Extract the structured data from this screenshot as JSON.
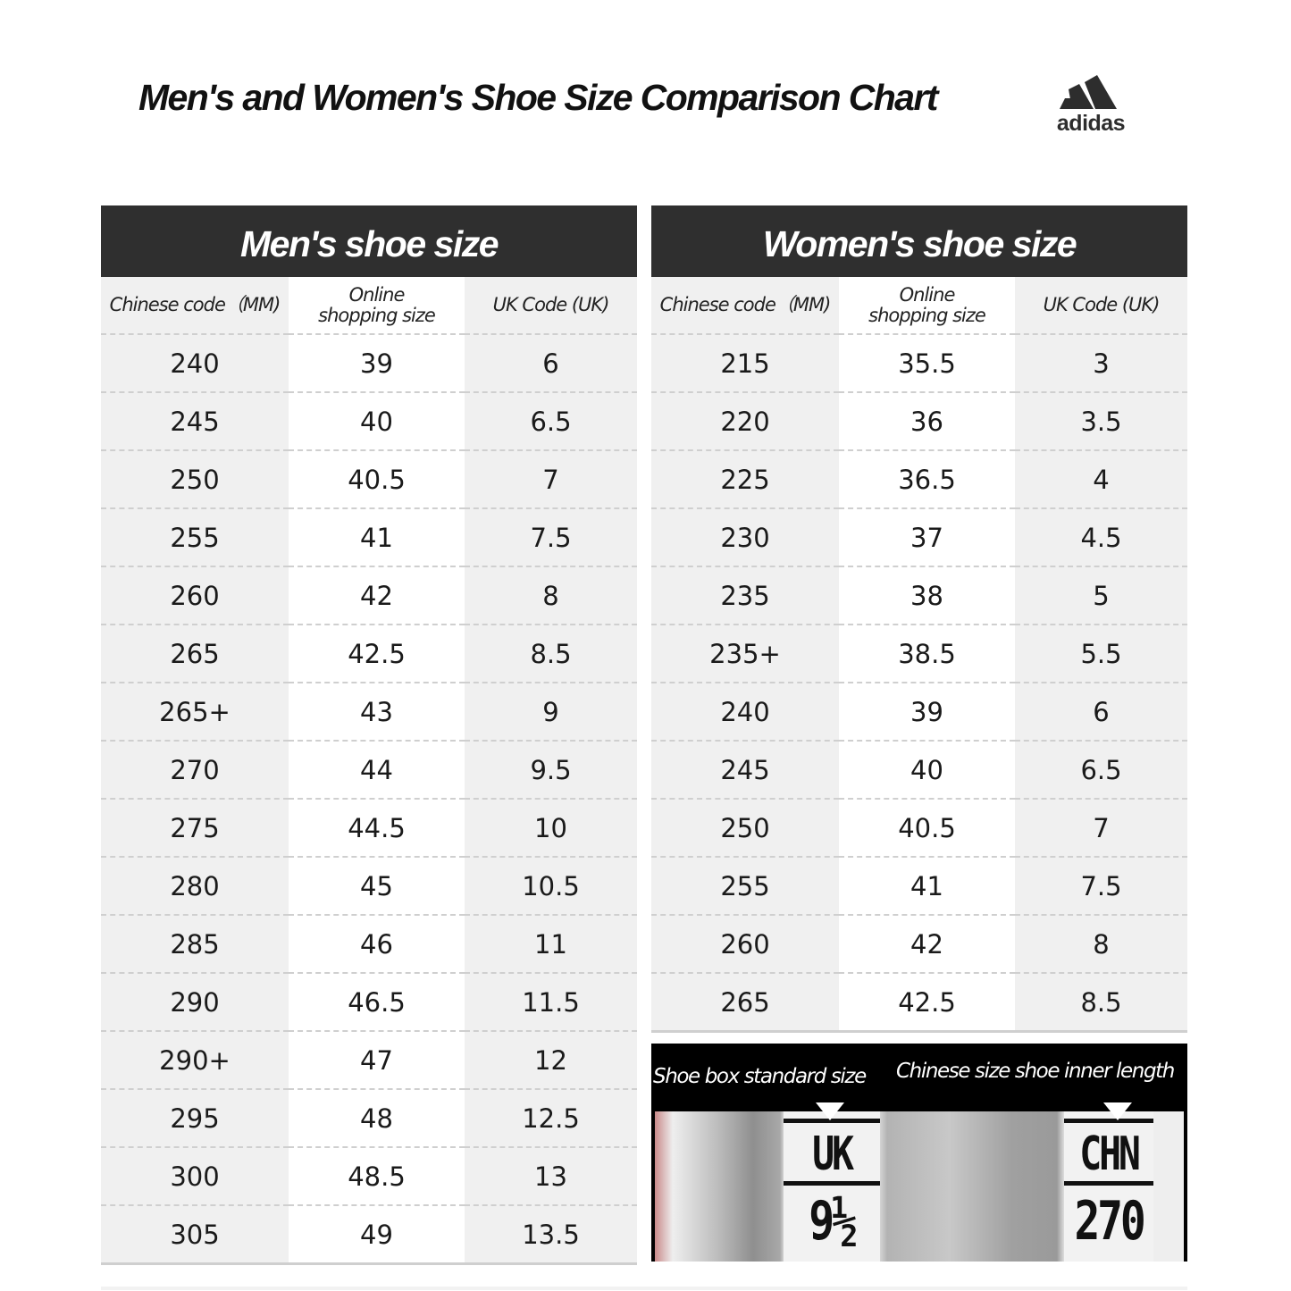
{
  "title": "Men's and Women's Shoe Size Comparison Chart",
  "brand": {
    "name": "adidas",
    "logo_color": "#2d2d2d"
  },
  "colors": {
    "header_bg": "#2f2f2f",
    "stripe_grey": "#f0f0f0",
    "divider": "#cfcfcf"
  },
  "men": {
    "heading": "Men's shoe size",
    "columns": [
      "Chinese code（MM)",
      "Online shopping size",
      "UK Code (UK)"
    ],
    "rows": [
      [
        "240",
        "39",
        "6"
      ],
      [
        "245",
        "40",
        "6.5"
      ],
      [
        "250",
        "40.5",
        "7"
      ],
      [
        "255",
        "41",
        "7.5"
      ],
      [
        "260",
        "42",
        "8"
      ],
      [
        "265",
        "42.5",
        "8.5"
      ],
      [
        "265+",
        "43",
        "9"
      ],
      [
        "270",
        "44",
        "9.5"
      ],
      [
        "275",
        "44.5",
        "10"
      ],
      [
        "280",
        "45",
        "10.5"
      ],
      [
        "285",
        "46",
        "11"
      ],
      [
        "290",
        "46.5",
        "11.5"
      ],
      [
        "290+",
        "47",
        "12"
      ],
      [
        "295",
        "48",
        "12.5"
      ],
      [
        "300",
        "48.5",
        "13"
      ],
      [
        "305",
        "49",
        "13.5"
      ]
    ]
  },
  "women": {
    "heading": "Women's shoe size",
    "columns": [
      "Chinese code（MM)",
      "Online shopping size",
      "UK Code (UK)"
    ],
    "rows": [
      [
        "215",
        "35.5",
        "3"
      ],
      [
        "220",
        "36",
        "3.5"
      ],
      [
        "225",
        "36.5",
        "4"
      ],
      [
        "230",
        "37",
        "4.5"
      ],
      [
        "235",
        "38",
        "5"
      ],
      [
        "235+",
        "38.5",
        "5.5"
      ],
      [
        "240",
        "39",
        "6"
      ],
      [
        "245",
        "40",
        "6.5"
      ],
      [
        "250",
        "40.5",
        "7"
      ],
      [
        "255",
        "41",
        "7.5"
      ],
      [
        "260",
        "42",
        "8"
      ],
      [
        "265",
        "42.5",
        "8.5"
      ]
    ]
  },
  "label_photo": {
    "left_caption": "Shoe box standard size",
    "right_caption": "Chinese size shoe inner length",
    "uk_tag": {
      "header": "UK",
      "value": "9½"
    },
    "chn_tag": {
      "header": "CHN",
      "value": "270"
    }
  }
}
